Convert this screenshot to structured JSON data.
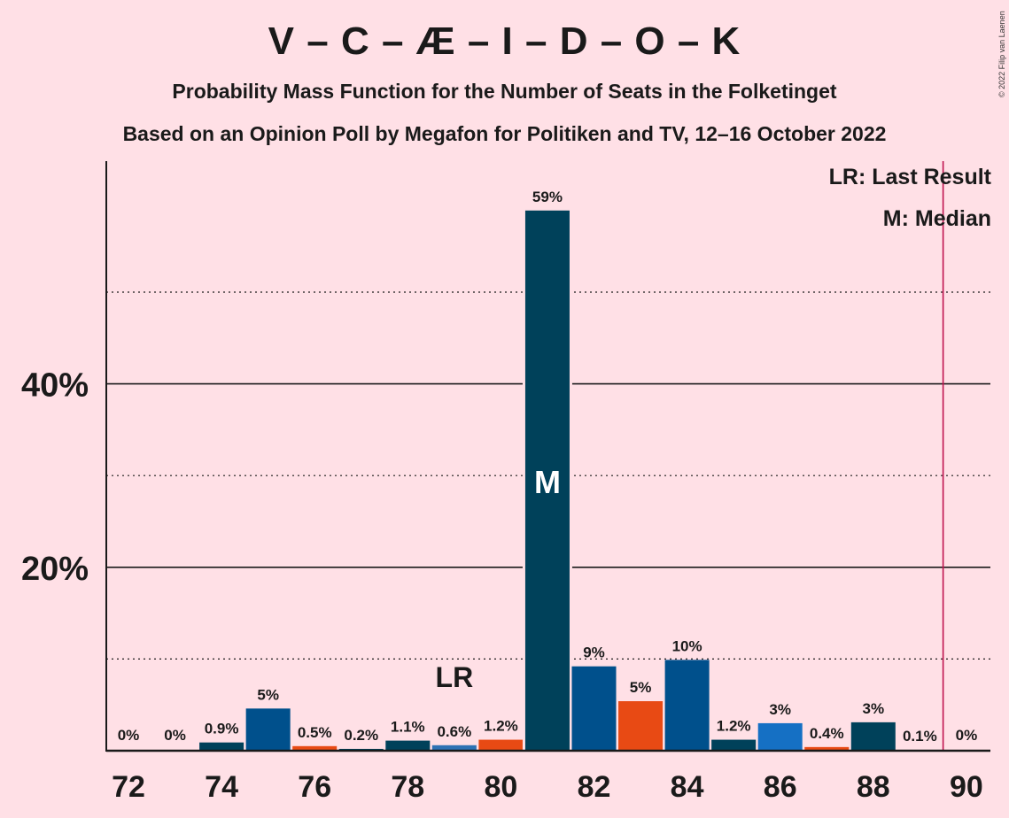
{
  "header": {
    "title": "V – C – Æ – I – D – O – K",
    "subtitle1": "Probability Mass Function for the Number of Seats in the Folketinget",
    "subtitle2": "Based on an Opinion Poll by Megafon for Politiken and TV, 12–16 October 2022",
    "copyright": "© 2022 Filip van Laenen"
  },
  "legend": {
    "last_result": "LR: Last Result",
    "median": "M: Median"
  },
  "chart_data": {
    "type": "bar",
    "x": [
      72,
      73,
      74,
      75,
      76,
      77,
      78,
      79,
      80,
      81,
      82,
      83,
      84,
      85,
      86,
      87,
      88,
      89,
      90
    ],
    "values": [
      0,
      0,
      0.9,
      4.6,
      0.5,
      0.2,
      1.1,
      0.6,
      1.2,
      58.9,
      9.2,
      5.4,
      9.9,
      1.2,
      3.0,
      0.4,
      3.1,
      0.1,
      0
    ],
    "labels": [
      "0%",
      "0%",
      "0.9%",
      "5%",
      "0.5%",
      "0.2%",
      "1.1%",
      "0.6%",
      "1.2%",
      "59%",
      "9%",
      "5%",
      "10%",
      "1.2%",
      "3%",
      "0.4%",
      "3%",
      "0.1%",
      "0%"
    ],
    "colors": [
      "#00415A",
      "#00415A",
      "#00415A",
      "#00508C",
      "#E84A14",
      "#00415A",
      "#00415A",
      "#2E72B4",
      "#E84A14",
      "#00415A",
      "#00508C",
      "#E84A14",
      "#00508C",
      "#00415A",
      "#1570C4",
      "#E84A14",
      "#00415A",
      "#00415A",
      "#00415A"
    ],
    "x_ticks": [
      "72",
      "74",
      "76",
      "78",
      "80",
      "82",
      "84",
      "86",
      "88",
      "90"
    ],
    "y_ticks": [
      "20%",
      "40%"
    ],
    "y_tick_values": [
      20,
      40
    ],
    "y_dotted_values": [
      10,
      30,
      50
    ],
    "ylim": [
      0,
      64
    ],
    "last_result_seat": 79,
    "last_result_label": "LR",
    "median_seat": 81,
    "median_label": "M",
    "majority_line_seat": 89.5,
    "majority_line_color": "#C0134F",
    "grid": true
  }
}
